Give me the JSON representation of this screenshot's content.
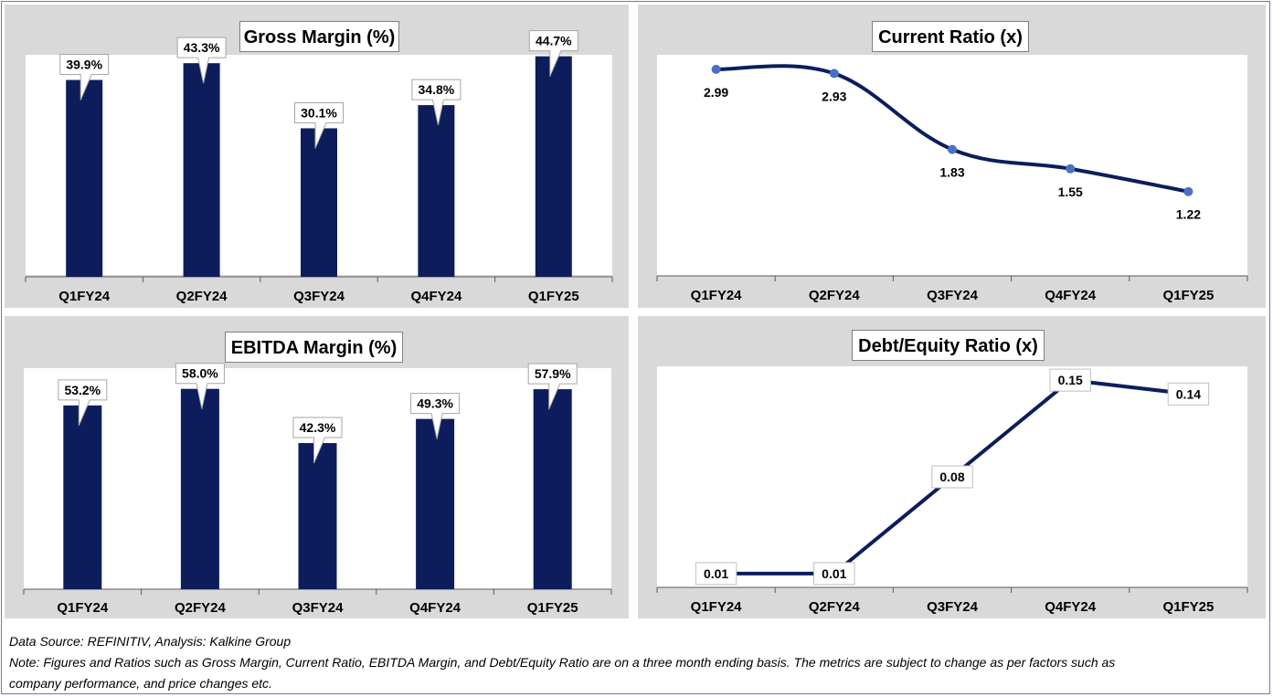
{
  "colors": {
    "bar": "#0d1d5c",
    "line": "#0d1d5c",
    "point": "#4a72c4",
    "panel": "#d9d9d9"
  },
  "footer": {
    "source": "Data Source: REFINITIV, Analysis: Kalkine Group",
    "note_line1": "Note: Figures and Ratios such as Gross Margin, Current Ratio, EBITDA Margin, and Debt/Equity Ratio are on a three month ending basis. The metrics are subject to change as per factors such as",
    "note_line2": "company performance, and price changes etc."
  },
  "chart_data": [
    {
      "id": "gross",
      "type": "bar",
      "title": "Gross Margin (%)",
      "categories": [
        "Q1FY24",
        "Q2FY24",
        "Q3FY24",
        "Q4FY24",
        "Q1FY25"
      ],
      "values": [
        39.9,
        43.3,
        30.1,
        34.8,
        44.7
      ],
      "labels": [
        "39.9%",
        "43.3%",
        "30.1%",
        "34.8%",
        "44.7%"
      ],
      "ylim": [
        0,
        45
      ],
      "label_style": "callout"
    },
    {
      "id": "current",
      "type": "line",
      "title": "Current Ratio (x)",
      "categories": [
        "Q1FY24",
        "Q2FY24",
        "Q3FY24",
        "Q4FY24",
        "Q1FY25"
      ],
      "values": [
        2.99,
        2.93,
        1.83,
        1.55,
        1.22
      ],
      "labels": [
        "2.99",
        "2.93",
        "1.83",
        "1.55",
        "1.22"
      ],
      "ylim": [
        0,
        3.2
      ],
      "smooth": true,
      "markers": true,
      "label_style": "plain"
    },
    {
      "id": "ebitda",
      "type": "bar",
      "title": "EBITDA Margin (%)",
      "categories": [
        "Q1FY24",
        "Q2FY24",
        "Q3FY24",
        "Q4FY24",
        "Q1FY25"
      ],
      "values": [
        53.2,
        58.0,
        42.3,
        49.3,
        57.9
      ],
      "labels": [
        "53.2%",
        "58.0%",
        "42.3%",
        "49.3%",
        "57.9%"
      ],
      "ylim": [
        0,
        64
      ],
      "label_style": "callout"
    },
    {
      "id": "de",
      "type": "line",
      "title": "Debt/Equity Ratio (x)",
      "categories": [
        "Q1FY24",
        "Q2FY24",
        "Q3FY24",
        "Q4FY24",
        "Q1FY25"
      ],
      "values": [
        0.01,
        0.01,
        0.08,
        0.15,
        0.14
      ],
      "labels": [
        "0.01",
        "0.01",
        "0.08",
        "0.15",
        "0.14"
      ],
      "ylim": [
        0,
        0.16
      ],
      "smooth": false,
      "markers": false,
      "label_style": "box"
    }
  ]
}
